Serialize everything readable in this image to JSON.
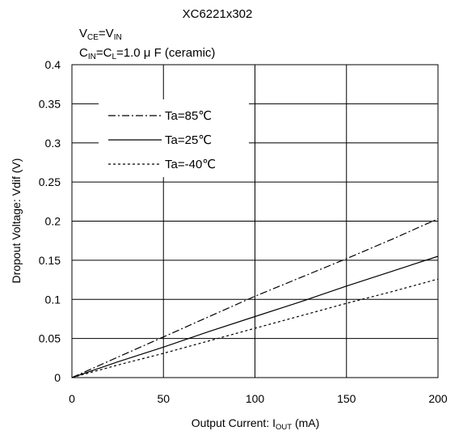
{
  "chart_data": {
    "type": "line",
    "title": "XC6221x302",
    "conditions": {
      "line1": {
        "a": "V",
        "a_sub": "CE",
        "b": "=V",
        "b_sub": "IN"
      },
      "line2": {
        "a": "C",
        "a_sub": "IN",
        "b": "=C",
        "b_sub": "L",
        "c": "=1.0 μ F (ceramic)"
      }
    },
    "xlabel": {
      "prefix": "Output Current: I",
      "sub": "OUT",
      "suffix": " (mA)"
    },
    "ylabel": "Dropout Voltage: Vdif  (V)",
    "xlim": [
      0,
      200
    ],
    "ylim": [
      0,
      0.4
    ],
    "x_ticks": [
      0,
      50,
      100,
      150,
      200
    ],
    "y_ticks": [
      0,
      0.05,
      0.1,
      0.15,
      0.2,
      0.25,
      0.3,
      0.35,
      0.4
    ],
    "x_tick_labels": [
      "0",
      "50",
      "100",
      "150",
      "200"
    ],
    "y_tick_labels": [
      "0",
      "0.05",
      "0.1",
      "0.15",
      "0.2",
      "0.25",
      "0.3",
      "0.35",
      "0.4"
    ],
    "grid": true,
    "legend_position": "top-left",
    "series": [
      {
        "name": "Ta=85℃",
        "style": "dashdot",
        "x": [
          0,
          25,
          50,
          75,
          100,
          125,
          150,
          175,
          200
        ],
        "y": [
          0,
          0.026,
          0.052,
          0.078,
          0.104,
          0.128,
          0.152,
          0.177,
          0.203
        ]
      },
      {
        "name": "Ta=25℃",
        "style": "solid",
        "x": [
          0,
          25,
          50,
          75,
          100,
          125,
          150,
          175,
          200
        ],
        "y": [
          0,
          0.02,
          0.039,
          0.059,
          0.078,
          0.097,
          0.117,
          0.136,
          0.155
        ]
      },
      {
        "name": "Ta=-40℃",
        "style": "dotted",
        "x": [
          0,
          25,
          50,
          75,
          100,
          125,
          150,
          175,
          200
        ],
        "y": [
          0,
          0.016,
          0.031,
          0.047,
          0.063,
          0.079,
          0.095,
          0.11,
          0.126
        ]
      }
    ]
  }
}
